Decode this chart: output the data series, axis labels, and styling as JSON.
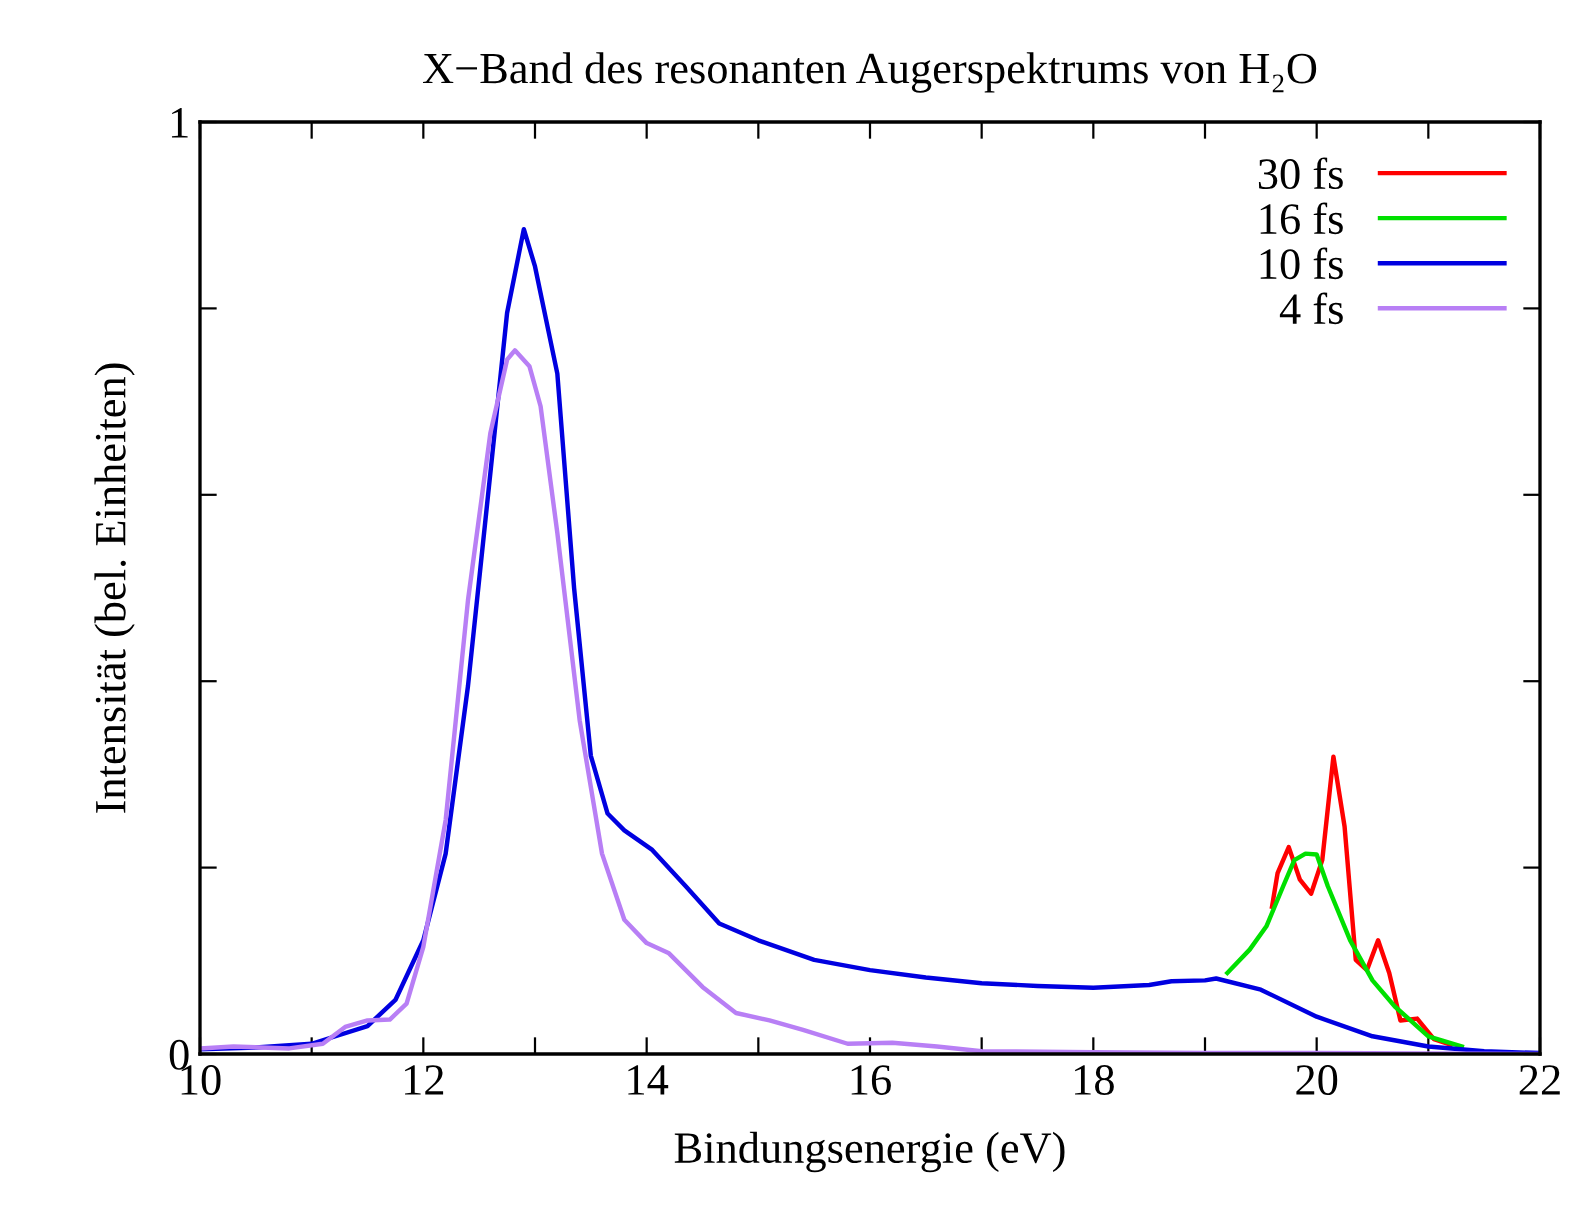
{
  "chart_data": {
    "type": "line",
    "title": "X−Band des resonanten Augerspektrums von H₂O",
    "xlabel": "Bindungsenergie (eV)",
    "ylabel": "Intensität (bel. Einheiten)",
    "xlim": [
      10,
      22
    ],
    "ylim": [
      0,
      1
    ],
    "xticks": [
      10,
      {
        "value": 11,
        "label": null
      },
      12,
      {
        "value": 13,
        "label": null
      },
      14,
      {
        "value": 15,
        "label": null
      },
      16,
      {
        "value": 17,
        "label": null
      },
      18,
      {
        "value": 19,
        "label": null
      },
      20,
      {
        "value": 21,
        "label": null
      },
      22
    ],
    "yticks": [
      0,
      {
        "value": 0.2,
        "label": null
      },
      {
        "value": 0.4,
        "label": null
      },
      {
        "value": 0.6,
        "label": null
      },
      {
        "value": 0.8,
        "label": null
      },
      1
    ],
    "legend": "top right",
    "grid": false,
    "marker": "none",
    "line_style": "solid",
    "series": [
      {
        "name": "30 fs",
        "color": "#ff0000",
        "x": [
          19.6,
          19.65,
          19.75,
          19.85,
          19.95,
          20.05,
          20.15,
          20.25,
          20.35,
          20.45,
          20.55,
          20.65,
          20.75,
          20.9,
          21.05,
          21.2
        ],
        "values": [
          0.158,
          0.194,
          0.222,
          0.187,
          0.172,
          0.208,
          0.319,
          0.244,
          0.101,
          0.09,
          0.122,
          0.087,
          0.036,
          0.038,
          0.016,
          0.01
        ]
      },
      {
        "name": "16 fs",
        "color": "#00e000",
        "x": [
          19.2,
          19.4,
          19.55,
          19.7,
          19.8,
          19.9,
          20.0,
          20.1,
          20.3,
          20.5,
          20.7,
          21.0,
          21.3
        ],
        "values": [
          0.087,
          0.112,
          0.137,
          0.18,
          0.208,
          0.215,
          0.214,
          0.18,
          0.122,
          0.079,
          0.051,
          0.019,
          0.008
        ]
      },
      {
        "name": "10 fs",
        "color": "#0000e0",
        "x": [
          10,
          10.5,
          11,
          11.5,
          11.75,
          12,
          12.2,
          12.4,
          12.6,
          12.75,
          12.9,
          13.0,
          13.2,
          13.35,
          13.5,
          13.65,
          13.8,
          14.05,
          14.35,
          14.65,
          15.0,
          15.5,
          16.0,
          16.5,
          17,
          17.5,
          18,
          18.5,
          18.7,
          19.0,
          19.1,
          19.5,
          20.0,
          20.5,
          21.0,
          21.5,
          22
        ],
        "values": [
          0.005,
          0.007,
          0.011,
          0.03,
          0.058,
          0.122,
          0.215,
          0.395,
          0.623,
          0.795,
          0.885,
          0.845,
          0.73,
          0.5,
          0.32,
          0.258,
          0.24,
          0.219,
          0.18,
          0.14,
          0.122,
          0.101,
          0.09,
          0.082,
          0.076,
          0.073,
          0.071,
          0.074,
          0.078,
          0.079,
          0.081,
          0.069,
          0.04,
          0.019,
          0.008,
          0.003,
          0.001
        ]
      },
      {
        "name": "4 fs",
        "color": "#b87ff5",
        "x": [
          10,
          10.3,
          10.8,
          11.1,
          11.3,
          11.5,
          11.7,
          11.85,
          12.0,
          12.2,
          12.4,
          12.6,
          12.75,
          12.82,
          12.95,
          13.05,
          13.2,
          13.4,
          13.6,
          13.8,
          14.0,
          14.2,
          14.5,
          14.8,
          15.1,
          15.4,
          15.8,
          16.2,
          16.6,
          17,
          18,
          19,
          20,
          22
        ],
        "values": [
          0.006,
          0.008,
          0.006,
          0.011,
          0.029,
          0.036,
          0.037,
          0.054,
          0.115,
          0.251,
          0.487,
          0.666,
          0.745,
          0.755,
          0.738,
          0.695,
          0.559,
          0.358,
          0.215,
          0.144,
          0.119,
          0.108,
          0.072,
          0.044,
          0.036,
          0.026,
          0.011,
          0.012,
          0.008,
          0.003,
          0.002,
          0.001,
          0.001,
          0
        ]
      }
    ]
  }
}
